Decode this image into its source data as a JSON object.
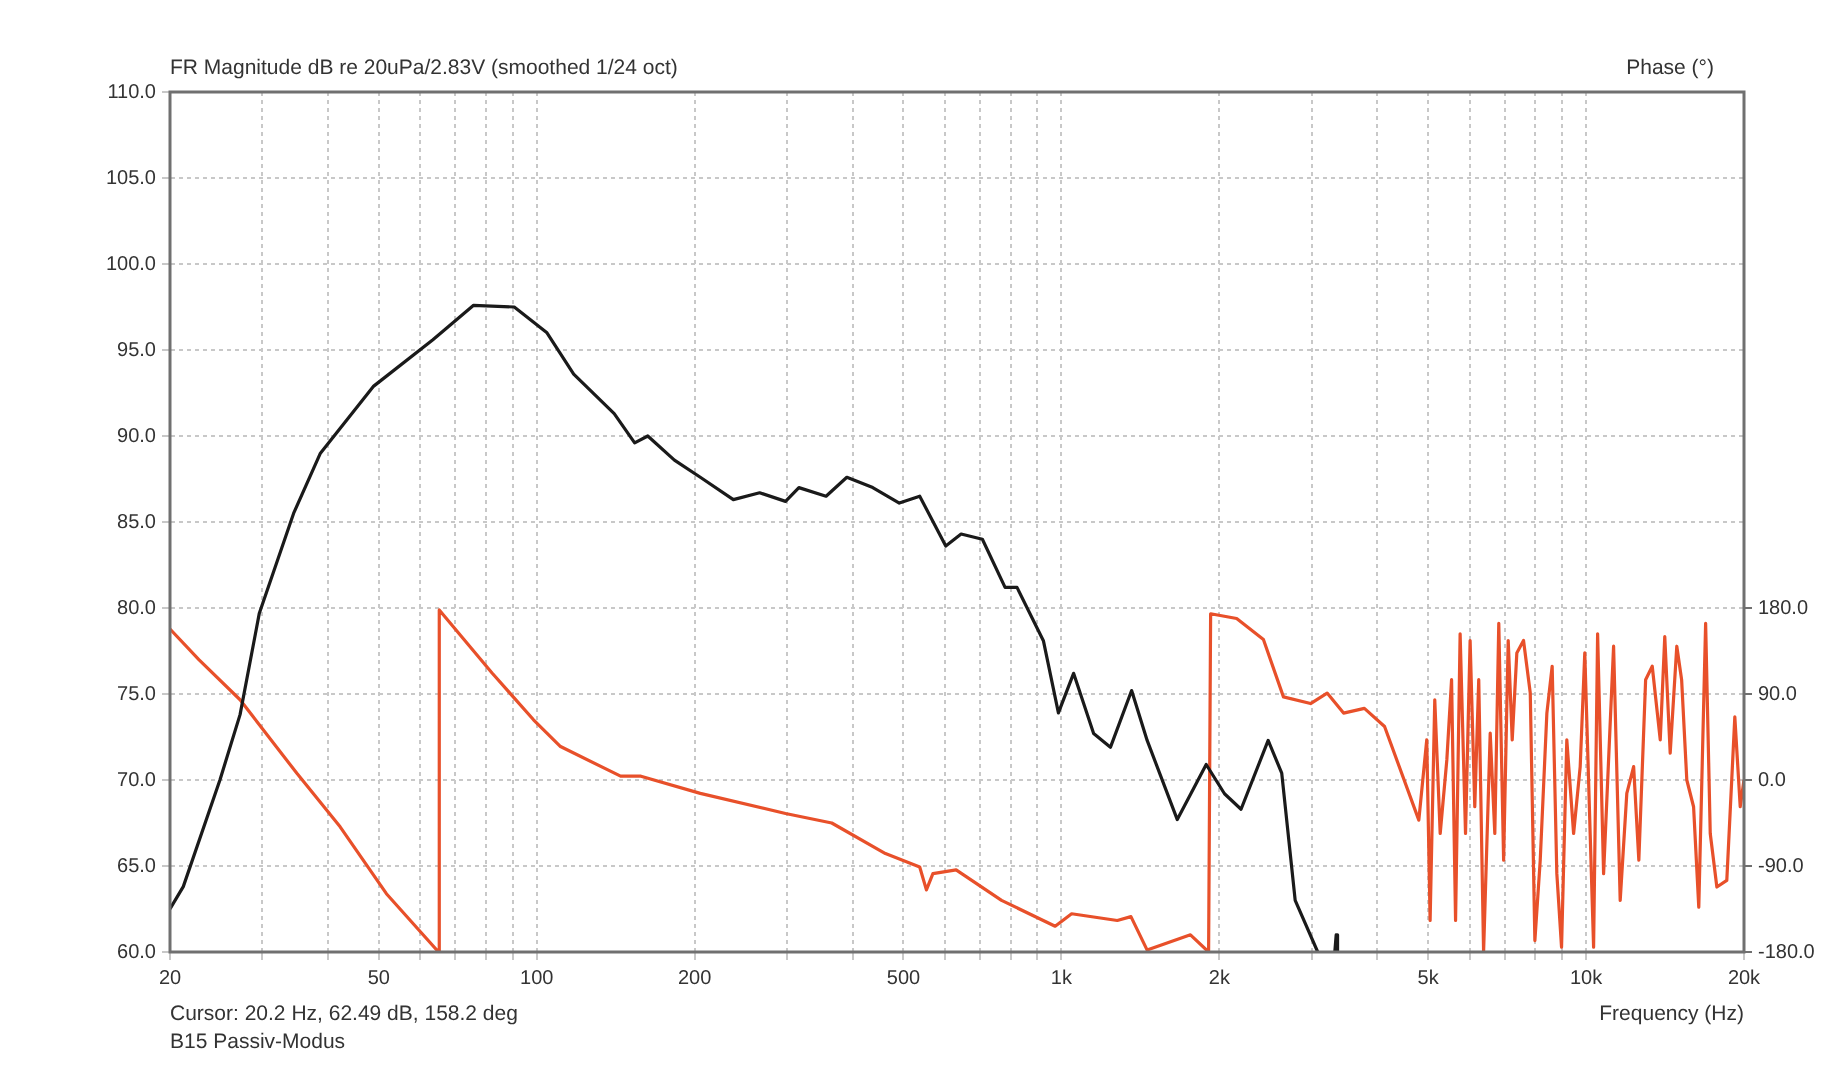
{
  "chart_data": {
    "type": "line",
    "title": "FR Magnitude dB re 20uPa/2.83V (smoothed 1/24 oct)",
    "xlabel": "Frequency (Hz)",
    "y2label": "Phase (°)",
    "annotations": [
      "Cursor: 20.2 Hz, 62.49 dB, 158.2 deg",
      "B15 Passiv-Modus"
    ],
    "log": "x",
    "grid": true,
    "marker": "none",
    "line_style": "solid",
    "xlim": [
      20,
      20000
    ],
    "xticks": [
      20,
      {
        "value": 30,
        "label": null
      },
      {
        "value": 40,
        "label": null
      },
      50,
      {
        "value": 60,
        "label": null
      },
      {
        "value": 70,
        "label": null
      },
      {
        "value": 80,
        "label": null
      },
      {
        "value": 90,
        "label": null
      },
      100,
      200,
      {
        "value": 300,
        "label": null
      },
      {
        "value": 400,
        "label": null
      },
      500,
      {
        "value": 600,
        "label": null
      },
      {
        "value": 700,
        "label": null
      },
      {
        "value": 800,
        "label": null
      },
      {
        "value": 900,
        "label": null
      },
      {
        "value": 1000,
        "label": "1k"
      },
      {
        "value": 2000,
        "label": "2k"
      },
      {
        "value": 3000,
        "label": null
      },
      {
        "value": 4000,
        "label": null
      },
      {
        "value": 5000,
        "label": "5k"
      },
      {
        "value": 6000,
        "label": null
      },
      {
        "value": 7000,
        "label": null
      },
      {
        "value": 8000,
        "label": null
      },
      {
        "value": 9000,
        "label": null
      },
      {
        "value": 10000,
        "label": "10k"
      },
      {
        "value": 20000,
        "label": "20k"
      }
    ],
    "ylim": [
      60,
      110
    ],
    "yticks": [
      {
        "value": 60,
        "label": "60.0"
      },
      {
        "value": 65,
        "label": "65.0"
      },
      {
        "value": 70,
        "label": "70.0"
      },
      {
        "value": 75,
        "label": "75.0"
      },
      {
        "value": 80,
        "label": "80.0"
      },
      {
        "value": 85,
        "label": "85.0"
      },
      {
        "value": 90,
        "label": "90.0"
      },
      {
        "value": 95,
        "label": "95.0"
      },
      {
        "value": 100,
        "label": "100.0"
      },
      {
        "value": 105,
        "label": "105.0"
      },
      {
        "value": 110,
        "label": "110.0"
      }
    ],
    "y2lim": [
      -180,
      720
    ],
    "y2ticks": [
      {
        "value": -180,
        "label": "-180.0"
      },
      {
        "value": -90,
        "label": "-90.0"
      },
      {
        "value": 0,
        "label": "0.0"
      },
      {
        "value": 90,
        "label": "90.0"
      },
      {
        "value": 180,
        "label": "180.0"
      }
    ],
    "series": [
      {
        "color": "#1a1a1a",
        "x": [
          20,
          21.2,
          24.9,
          27.2,
          29.6,
          34.4,
          38.7,
          48.9,
          63.4,
          75.8,
          90.6,
          104.6,
          117.6,
          140.5,
          153.7,
          162.8,
          183,
          205,
          237,
          266,
          298,
          316,
          356,
          390,
          437,
          491,
          537,
          602,
          644,
          707,
          781,
          823,
          924,
          987,
          1055,
          1152,
          1240,
          1361,
          1457,
          1663,
          1888,
          2046,
          2200,
          2478,
          2630,
          2790,
          3080,
          3200,
          3320,
          3340,
          3360
        ],
        "values": [
          62.5,
          63.8,
          70,
          73.8,
          79.7,
          85.5,
          89,
          92.9,
          95.6,
          97.6,
          97.5,
          96,
          93.6,
          91.3,
          89.6,
          90,
          88.6,
          87.6,
          86.3,
          86.7,
          86.2,
          87,
          86.5,
          87.6,
          87,
          86.1,
          86.5,
          83.6,
          84.3,
          84,
          81.2,
          81.2,
          78.1,
          73.9,
          76.2,
          72.7,
          71.9,
          75.2,
          72.3,
          67.7,
          70.9,
          69.2,
          68.3,
          72.3,
          70.4,
          63,
          60,
          null,
          60,
          61,
          60
        ]
      },
      {
        "color": "#e8502a",
        "axis": "y2",
        "x": [
          20,
          22.7,
          27.2,
          34.9,
          42.2,
          51.7,
          65,
          65.2,
          82.2,
          98.6,
          111,
          144.5,
          158,
          205,
          298,
          365,
          462,
          537,
          553,
          569,
          630,
          769,
          973,
          1046,
          1278,
          1357,
          1457,
          1762,
          1908,
          1925,
          2158,
          2427,
          2650,
          2985,
          3210,
          3450,
          3780,
          4130,
          4800,
          4970,
          5044,
          5148,
          5272,
          5428,
          5542,
          5640,
          5754,
          5892,
          6012,
          6136,
          6244,
          6378,
          6566,
          6700,
          6818,
          6964,
          7106,
          7232,
          7380,
          7600,
          7828,
          7988,
          8178,
          8420,
          8618,
          8796,
          8980,
          9190,
          9468,
          9746,
          9944,
          10182,
          10336,
          10520,
          10800,
          11284,
          11616,
          11958,
          12322,
          12606,
          12988,
          13370,
          13848,
          14126,
          14466,
          14892,
          15210,
          15560,
          16030,
          16400,
          16900,
          17246,
          17754,
          18546,
          19210,
          19670,
          20000
        ],
        "values": [
          158,
          126,
          84,
          7,
          -49,
          -119,
          -180,
          178,
          112,
          63,
          35,
          4,
          4,
          -14,
          -35,
          -45,
          -77,
          -91,
          -115,
          -98,
          -94,
          -126,
          -153,
          -140,
          -147,
          -143,
          -178,
          -162,
          -180,
          174,
          169,
          147,
          87,
          80,
          91,
          70,
          75,
          56,
          -42,
          42,
          -147,
          84,
          -56,
          21,
          105,
          -147,
          153,
          -56,
          146,
          -28,
          105,
          -180,
          49,
          -56,
          164,
          -84,
          146,
          42,
          133,
          146,
          91,
          -168,
          -84,
          70,
          119,
          -98,
          -175,
          42,
          -56,
          14,
          133,
          -56,
          -175,
          153,
          -98,
          140,
          -126,
          -14,
          14,
          -84,
          105,
          119,
          42,
          150,
          28,
          140,
          105,
          0,
          -28,
          -133,
          164,
          -56,
          -112,
          -105,
          66,
          -28,
          0
        ]
      }
    ]
  }
}
